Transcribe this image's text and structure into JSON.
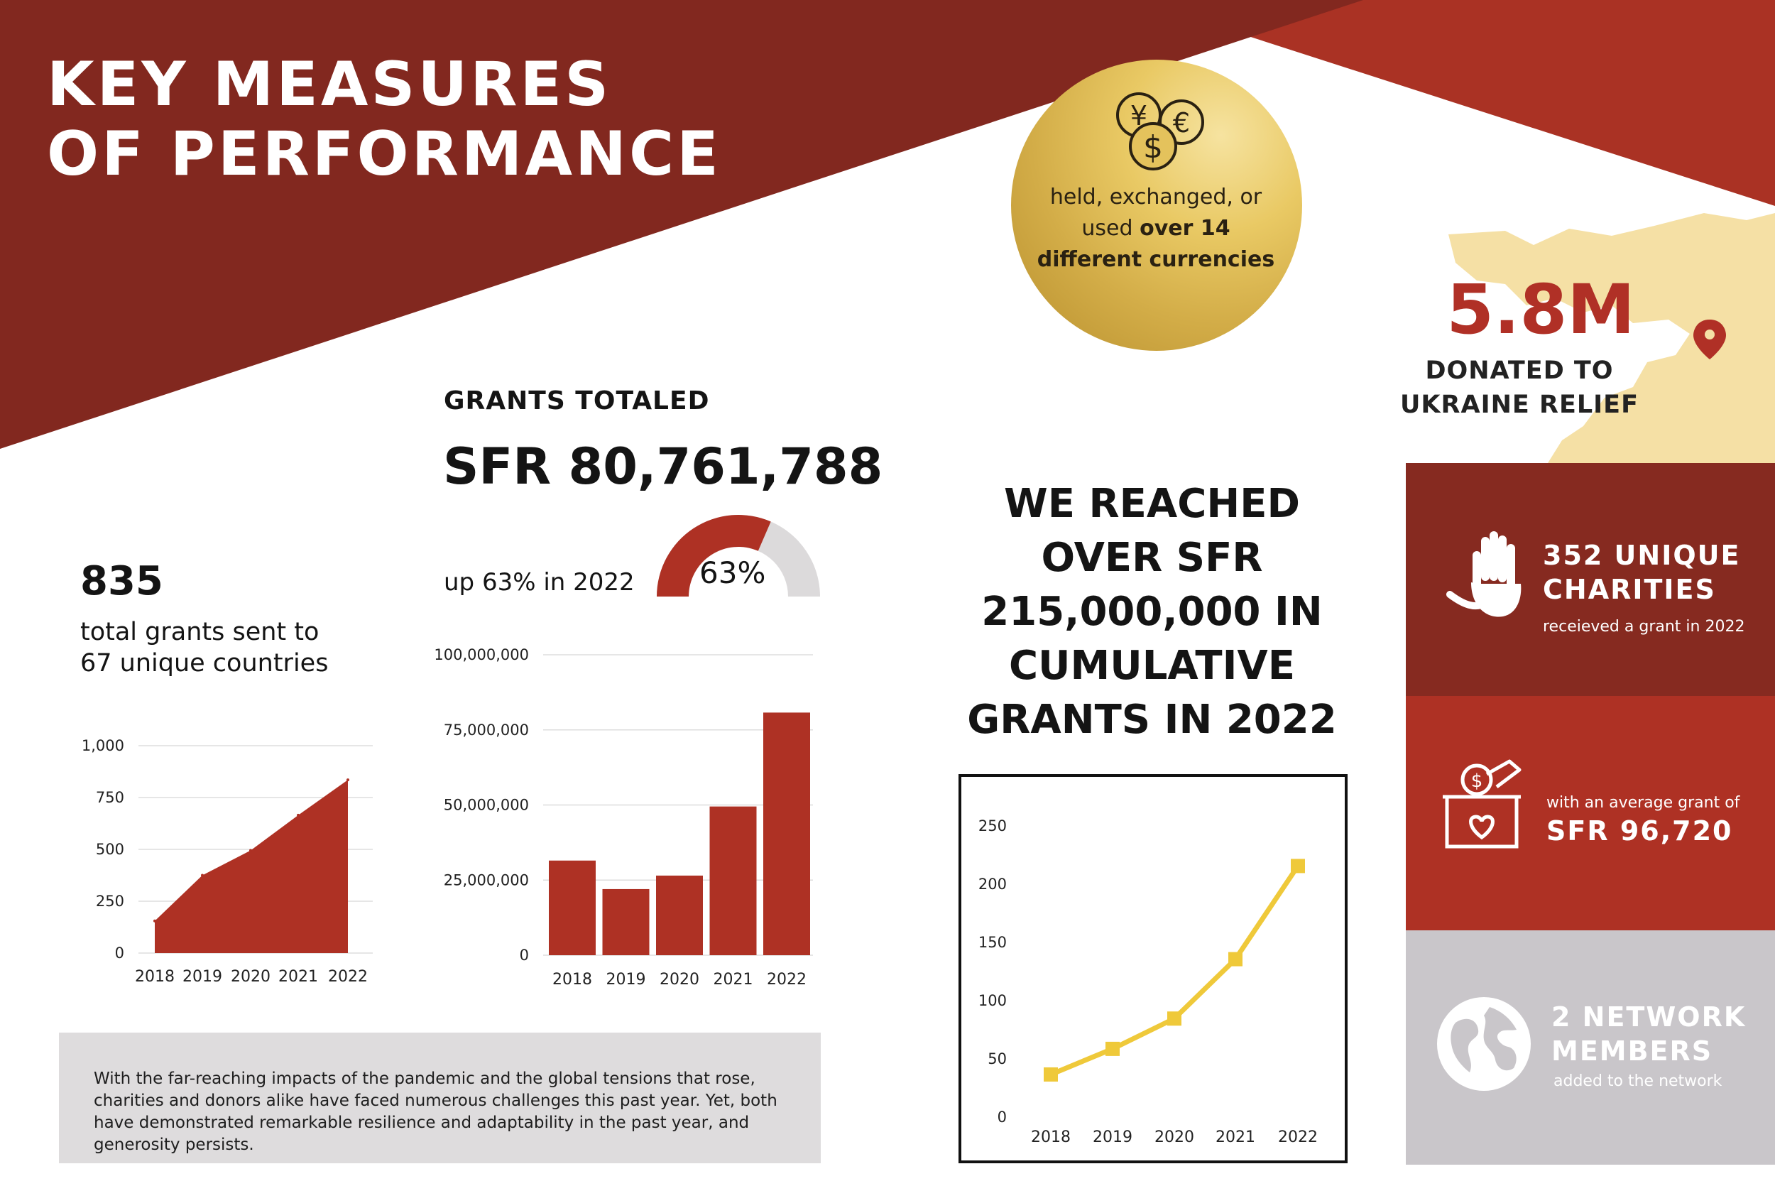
{
  "header": {
    "title_line1": "KEY MEASURES",
    "title_line2": "OF PERFORMANCE"
  },
  "currencies": {
    "text_prefix": "held, exchanged, or",
    "text_used": "used",
    "text_bold": "over 14 different currencies"
  },
  "ukraine": {
    "value": "5.8M",
    "label_line1": "DONATED TO",
    "label_line2": "UKRAINE RELIEF"
  },
  "grants_totaled": {
    "label": "GRANTS TOTALED",
    "value": "SFR 80,761,788",
    "change_text": "up 63% in 2022",
    "gauge_label": "63%",
    "gauge_fraction": 0.63
  },
  "total_grants": {
    "value": "835",
    "text_line1": "total grants sent to",
    "text_line2": "67 unique countries"
  },
  "cumulative": {
    "line1": "WE REACHED",
    "line2": "OVER SFR",
    "line3": "215,000,000 IN",
    "line4": "CUMULATIVE",
    "line5": "GRANTS IN 2022"
  },
  "note": {
    "text": "With the far-reaching impacts of the pandemic and the global tensions that rose, charities and donors alike have faced numerous challenges this past year. Yet, both have demonstrated remarkable resilience and adaptability in the past year, and generosity persists."
  },
  "panels": {
    "charities": {
      "title_line1": "352 UNIQUE",
      "title_line2": "CHARITIES",
      "subtitle": "receieved a grant in 2022"
    },
    "average": {
      "subtitle": "with an average grant of",
      "value": "SFR 96,720"
    },
    "network": {
      "title_line1": "2 NETWORK",
      "title_line2": "MEMBERS",
      "subtitle": "added to the network"
    }
  },
  "colors": {
    "dark_red": "#862a20",
    "red": "#ae3124",
    "gold": "#e6c43a",
    "grey": "#c9c6ca",
    "line_yellow": "#efc93a"
  },
  "chart_data": [
    {
      "type": "area",
      "categories": [
        "2018",
        "2019",
        "2020",
        "2021",
        "2022"
      ],
      "values": [
        155,
        375,
        495,
        665,
        835
      ],
      "ylim": [
        0,
        1000
      ],
      "yticks": [
        0,
        250,
        500,
        750,
        1000
      ],
      "ytick_labels": [
        "0",
        "250",
        "500",
        "750",
        "1,000"
      ],
      "grid": true,
      "color": "#ae3124"
    },
    {
      "type": "bar",
      "categories": [
        "2018",
        "2019",
        "2020",
        "2021",
        "2022"
      ],
      "values": [
        31500000,
        22000000,
        26500000,
        49500000,
        80761788
      ],
      "ylim": [
        0,
        100000000
      ],
      "yticks": [
        0,
        25000000,
        50000000,
        75000000,
        100000000
      ],
      "ytick_labels": [
        "0",
        "25,000,000",
        "50,000,000",
        "75,000,000",
        "100,000,000"
      ],
      "grid": true,
      "color": "#ae3124"
    },
    {
      "type": "line",
      "categories": [
        "2018",
        "2019",
        "2020",
        "2021",
        "2022"
      ],
      "values": [
        36,
        58,
        84,
        135,
        215
      ],
      "ylim": [
        0,
        250
      ],
      "yticks": [
        0,
        50,
        100,
        150,
        200,
        250
      ],
      "ytick_labels": [
        "0",
        "50",
        "100",
        "150",
        "200",
        "250"
      ],
      "grid": false,
      "color": "#efc93a"
    }
  ]
}
